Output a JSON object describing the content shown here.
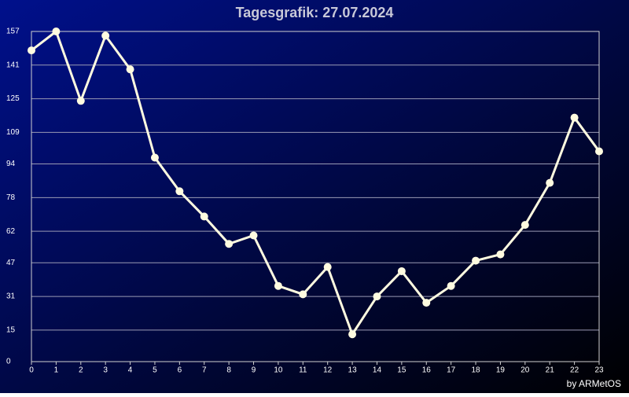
{
  "chart_data": {
    "type": "line",
    "title": "Tagesgrafik: 27.07.2024",
    "credit": "by ARMetOS",
    "x": [
      0,
      1,
      2,
      3,
      4,
      5,
      6,
      7,
      8,
      9,
      10,
      11,
      12,
      13,
      14,
      15,
      16,
      17,
      18,
      19,
      20,
      21,
      22,
      23
    ],
    "series": [
      {
        "color": "#fffbe0",
        "values": [
          148,
          157,
          124,
          155,
          139,
          97,
          81,
          69,
          56,
          60,
          36,
          32,
          45,
          13,
          31,
          43,
          28,
          36,
          48,
          51,
          65,
          85,
          116,
          100
        ]
      }
    ],
    "xlim": [
      0,
      23
    ],
    "xticks": [
      0,
      1,
      2,
      3,
      4,
      5,
      6,
      7,
      8,
      9,
      10,
      11,
      12,
      13,
      14,
      15,
      16,
      17,
      18,
      19,
      20,
      21,
      22,
      23
    ],
    "ylim": [
      0,
      157
    ],
    "yticks": [
      0,
      15,
      31,
      47,
      62,
      78,
      94,
      109,
      125,
      141,
      157
    ],
    "grid": true
  }
}
